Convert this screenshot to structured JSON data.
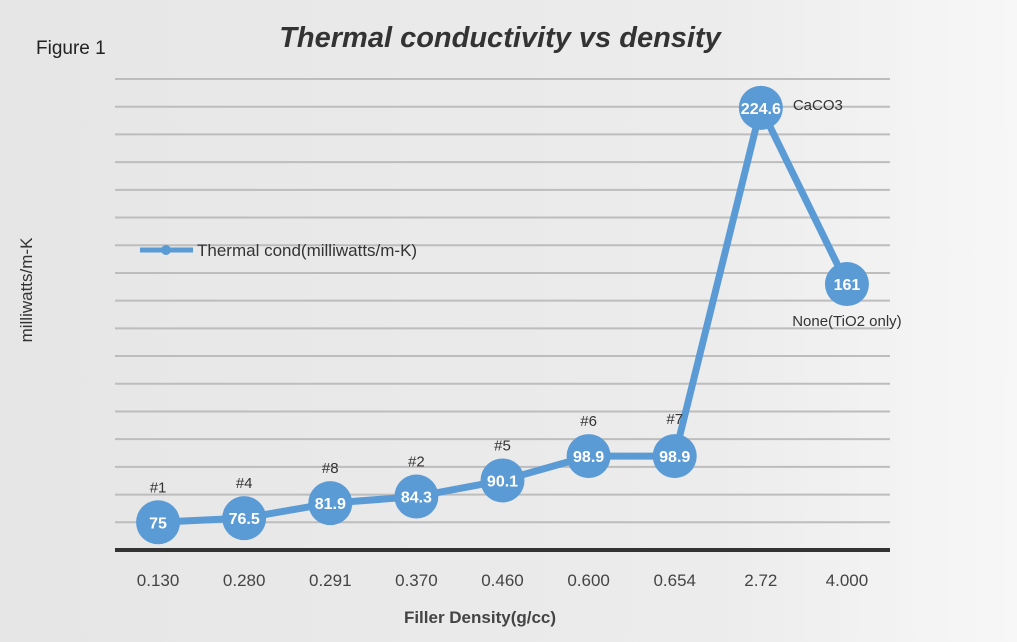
{
  "figure_label": "Figure 1",
  "chart_data": {
    "type": "line",
    "title": "Thermal conductivity vs density",
    "xlabel": "Filler Density(g/cc)",
    "ylabel": "milliwatts/m-K",
    "categories": [
      "0.130",
      "0.280",
      "0.291",
      "0.370",
      "0.460",
      "0.600",
      "0.654",
      "2.72",
      "4.000"
    ],
    "series": [
      {
        "name": "Thermal cond(milliwatts/m-K)",
        "values": [
          75,
          76.5,
          81.9,
          84.3,
          90.1,
          98.9,
          98.9,
          224.6,
          161
        ],
        "value_labels": [
          "75",
          "76.5",
          "81.9",
          "84.3",
          "90.1",
          "98.9",
          "98.9",
          "224.6",
          "161"
        ],
        "point_labels": [
          "#1",
          "#4",
          "#8",
          "#2",
          "#5",
          "#6",
          "#7",
          "CaCO3",
          "None(TiO2 only)"
        ]
      }
    ],
    "ylim": [
      65,
      235
    ],
    "grid": true,
    "y_tick_labels_shown": false,
    "legend_position": "upper-left",
    "color": "#5b9bd5"
  }
}
